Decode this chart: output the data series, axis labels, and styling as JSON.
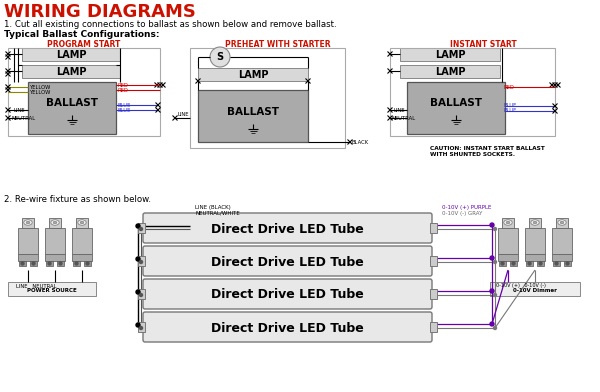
{
  "title": "WIRING DIAGRAMS",
  "title_color": "#cc1100",
  "bg_color": "#ffffff",
  "step1_text": "1. Cut all existing connections to ballast as shown below and remove ballast.",
  "typical_text": "Typical Ballast Configurations:",
  "step2_text": "2. Re-wire fixture as shown below.",
  "section1_labels": [
    "PROGRAM START",
    "PREHEAT WITH STARTER",
    "INSTANT START"
  ],
  "section1_color": "#cc1100",
  "lamp_box_color": "#d8d8d8",
  "ballast_box_color": "#aaaaaa",
  "tube_box_color": "#e8e8e8",
  "wire_black": "#111111",
  "wire_blue": "#3333cc",
  "wire_purple": "#6600aa",
  "wire_gray": "#888888",
  "wire_red": "#cc0000",
  "wire_yellow": "#888800",
  "caution_text": "CAUTION: INSTANT START BALLAST\nWITH SHUNTED SOCKETS.",
  "led_tube_label": "Direct Drive LED Tube",
  "line_label": "LINE (BLACK)",
  "neutral_label": "NEUTRAL/WHITE",
  "dimmer_label_purple": "0-10V (+) PURPLE",
  "dimmer_label_gray": "0-10V (-) GRAY",
  "power_source_label": "POWER SOURCE",
  "dimmer_box_label": "0-10V Dimmer"
}
